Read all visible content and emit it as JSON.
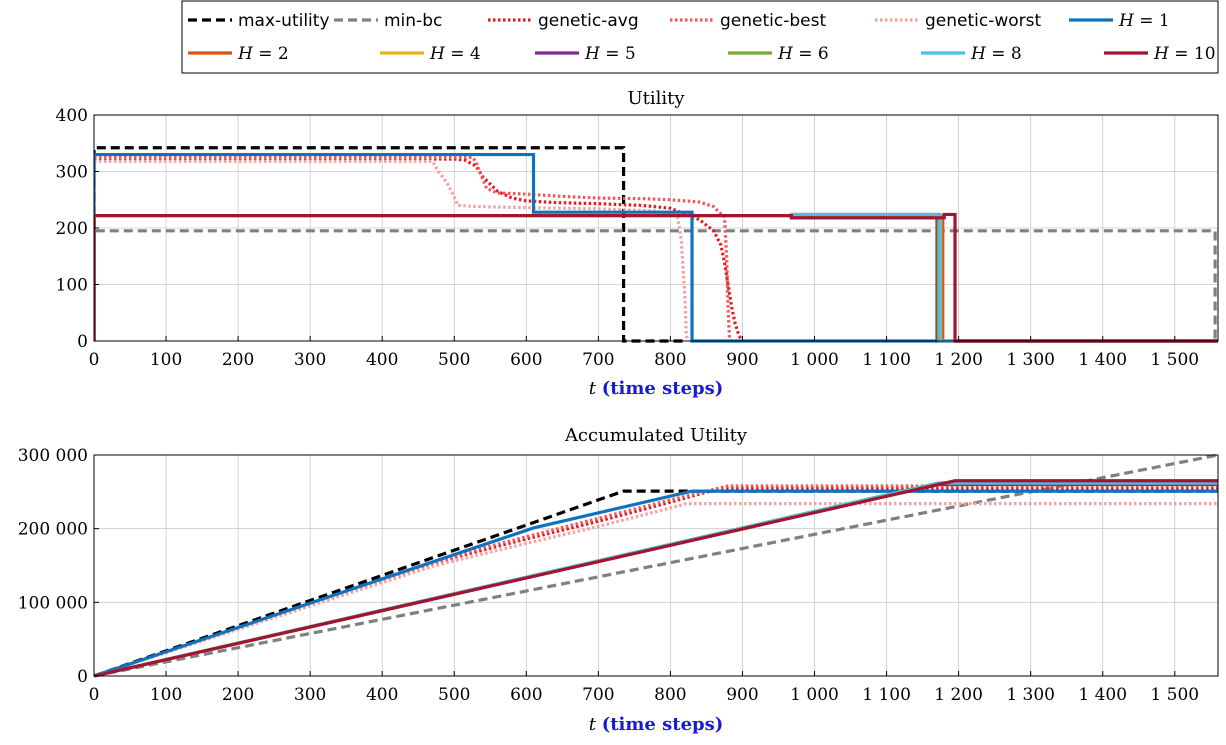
{
  "chart_data": [
    {
      "type": "line",
      "title": "Utility",
      "xlabel_var": "t",
      "xlabel_unit": "(time steps)",
      "xlim": [
        0,
        1560
      ],
      "ylim": [
        0,
        400
      ],
      "xticks": [
        0,
        100,
        200,
        300,
        400,
        500,
        600,
        700,
        800,
        900,
        1000,
        1100,
        1200,
        1300,
        1400,
        1500
      ],
      "xtick_labels": [
        "0",
        "100",
        "200",
        "300",
        "400",
        "500",
        "600",
        "700",
        "800",
        "900",
        "1 000",
        "1 100",
        "1 200",
        "1 300",
        "1 400",
        "1 500"
      ],
      "yticks": [
        0,
        100,
        200,
        300,
        400
      ],
      "ytick_labels": [
        "0",
        "100",
        "200",
        "300",
        "400"
      ],
      "grid": true,
      "series": [
        {
          "key": "max-utility",
          "x": [
            0,
            0,
            735,
            735,
            820,
            820
          ],
          "y": [
            0,
            342,
            342,
            0,
            0,
            0
          ]
        },
        {
          "key": "min-bc",
          "x": [
            0,
            0,
            1556,
            1556
          ],
          "y": [
            0,
            195,
            195,
            0
          ]
        },
        {
          "key": "genetic-avg",
          "x": [
            0,
            500,
            515,
            530,
            540,
            560,
            580,
            600,
            640,
            700,
            760,
            800,
            820,
            840,
            860,
            870,
            875,
            880,
            885,
            890,
            895,
            900
          ],
          "y": [
            322,
            322,
            320,
            310,
            290,
            265,
            253,
            248,
            245,
            243,
            240,
            235,
            225,
            215,
            195,
            170,
            140,
            100,
            60,
            30,
            10,
            0
          ]
        },
        {
          "key": "genetic-best",
          "x": [
            0,
            525,
            530,
            535,
            545,
            560,
            600,
            650,
            700,
            760,
            800,
            840,
            860,
            870,
            875,
            878,
            880,
            882,
            885
          ],
          "y": [
            325,
            325,
            318,
            300,
            270,
            262,
            260,
            256,
            253,
            252,
            250,
            246,
            238,
            225,
            220,
            150,
            60,
            5,
            0
          ]
        },
        {
          "key": "genetic-worst",
          "x": [
            0,
            470,
            478,
            490,
            500,
            505,
            530,
            600,
            700,
            780,
            800,
            810,
            815,
            820,
            822,
            825
          ],
          "y": [
            318,
            318,
            300,
            280,
            255,
            240,
            238,
            236,
            234,
            230,
            225,
            220,
            180,
            80,
            10,
            0
          ]
        },
        {
          "key": "H=1",
          "x": [
            0,
            0,
            610,
            610,
            830,
            830,
            1178,
            1178
          ],
          "y": [
            0,
            330,
            330,
            228,
            228,
            0,
            0,
            0
          ]
        },
        {
          "key": "H=2",
          "x": [
            0,
            0,
            1178,
            1178,
            1560
          ],
          "y": [
            0,
            222,
            222,
            0,
            0
          ]
        },
        {
          "key": "H=4",
          "x": [
            0,
            0,
            1175,
            1175,
            1560
          ],
          "y": [
            0,
            222,
            222,
            0,
            0
          ]
        },
        {
          "key": "H=5",
          "x": [
            0,
            0,
            968,
            968,
            1170,
            1170,
            1560
          ],
          "y": [
            0,
            222,
            222,
            218,
            218,
            0,
            0
          ]
        },
        {
          "key": "H=6",
          "x": [
            0,
            0,
            968,
            968,
            1172,
            1172,
            1560
          ],
          "y": [
            0,
            222,
            222,
            224,
            224,
            0,
            0
          ]
        },
        {
          "key": "H=8",
          "x": [
            0,
            0,
            968,
            968,
            1174,
            1174,
            1560
          ],
          "y": [
            0,
            222,
            222,
            224,
            224,
            0,
            0
          ]
        },
        {
          "key": "H=10",
          "x": [
            0,
            0,
            968,
            968,
            1180,
            1180,
            1195,
            1195,
            1560
          ],
          "y": [
            0,
            222,
            222,
            218,
            218,
            224,
            224,
            0,
            0
          ]
        }
      ]
    },
    {
      "type": "line",
      "title": "Accumulated Utility",
      "xlabel_var": "t",
      "xlabel_unit": "(time steps)",
      "xlim": [
        0,
        1560
      ],
      "ylim": [
        0,
        300000
      ],
      "xticks": [
        0,
        100,
        200,
        300,
        400,
        500,
        600,
        700,
        800,
        900,
        1000,
        1100,
        1200,
        1300,
        1400,
        1500
      ],
      "xtick_labels": [
        "0",
        "100",
        "200",
        "300",
        "400",
        "500",
        "600",
        "700",
        "800",
        "900",
        "1 000",
        "1 100",
        "1 200",
        "1 300",
        "1 400",
        "1 500"
      ],
      "yticks": [
        0,
        100000,
        200000,
        300000
      ],
      "ytick_labels": [
        "0",
        "100 000",
        "200 000",
        "300 000"
      ],
      "grid": true,
      "series": [
        {
          "key": "max-utility",
          "x": [
            0,
            735,
            1560
          ],
          "y": [
            0,
            251000,
            251000
          ]
        },
        {
          "key": "min-bc",
          "x": [
            0,
            1560
          ],
          "y": [
            0,
            300000
          ]
        },
        {
          "key": "genetic-avg",
          "x": [
            0,
            500,
            600,
            700,
            800,
            870,
            1560
          ],
          "y": [
            0,
            161000,
            186000,
            210000,
            236000,
            255000,
            255000
          ]
        },
        {
          "key": "genetic-best",
          "x": [
            0,
            525,
            600,
            700,
            800,
            880,
            1560
          ],
          "y": [
            0,
            170000,
            189000,
            214000,
            239000,
            258000,
            258000
          ]
        },
        {
          "key": "genetic-worst",
          "x": [
            0,
            470,
            600,
            700,
            800,
            822,
            1560
          ],
          "y": [
            0,
            149000,
            180000,
            203000,
            228000,
            234000,
            234000
          ]
        },
        {
          "key": "H=1",
          "x": [
            0,
            610,
            830,
            1560
          ],
          "y": [
            0,
            201000,
            251000,
            251000
          ]
        },
        {
          "key": "H=2",
          "x": [
            0,
            1178,
            1560
          ],
          "y": [
            0,
            262000,
            262000
          ]
        },
        {
          "key": "H=4",
          "x": [
            0,
            1175,
            1560
          ],
          "y": [
            0,
            261000,
            261000
          ]
        },
        {
          "key": "H=5",
          "x": [
            0,
            1170,
            1560
          ],
          "y": [
            0,
            260000,
            260000
          ]
        },
        {
          "key": "H=6",
          "x": [
            0,
            1172,
            1560
          ],
          "y": [
            0,
            262000,
            262000
          ]
        },
        {
          "key": "H=8",
          "x": [
            0,
            1174,
            1560
          ],
          "y": [
            0,
            262000,
            262000
          ]
        },
        {
          "key": "H=10",
          "x": [
            0,
            1195,
            1560
          ],
          "y": [
            0,
            265000,
            265000
          ]
        }
      ]
    }
  ],
  "legend": {
    "placement": "top",
    "entries": [
      {
        "key": "max-utility",
        "label": "max-utility",
        "math": false,
        "color": "#000000",
        "dash": "dashed",
        "width": 3.2
      },
      {
        "key": "min-bc",
        "label": "min-bc",
        "math": false,
        "color": "#808080",
        "dash": "dashed",
        "width": 3.2
      },
      {
        "key": "genetic-avg",
        "label": "genetic-avg",
        "math": false,
        "color": "#e41a1c",
        "dash": "dotted",
        "width": 3.2
      },
      {
        "key": "genetic-best",
        "label": "genetic-best",
        "math": false,
        "color": "#f0585a",
        "dash": "dotted",
        "width": 3.2
      },
      {
        "key": "genetic-worst",
        "label": "genetic-worst",
        "math": false,
        "color": "#f7a0a0",
        "dash": "dotted",
        "width": 3.2
      },
      {
        "key": "H=1",
        "label_var": "H",
        "label_val": "1",
        "math": true,
        "color": "#0f72bd",
        "dash": "solid",
        "width": 3.2
      },
      {
        "key": "H=2",
        "label_var": "H",
        "label_val": "2",
        "math": true,
        "color": "#d95319",
        "dash": "solid",
        "width": 3.2
      },
      {
        "key": "H=4",
        "label_var": "H",
        "label_val": "4",
        "math": true,
        "color": "#edb120",
        "dash": "solid",
        "width": 3.2
      },
      {
        "key": "H=5",
        "label_var": "H",
        "label_val": "5",
        "math": true,
        "color": "#7e2f8e",
        "dash": "solid",
        "width": 3.2
      },
      {
        "key": "H=6",
        "label_var": "H",
        "label_val": "6",
        "math": true,
        "color": "#77ac30",
        "dash": "solid",
        "width": 3.2
      },
      {
        "key": "H=8",
        "label_var": "H",
        "label_val": "8",
        "math": true,
        "color": "#4dbeee",
        "dash": "solid",
        "width": 3.2
      },
      {
        "key": "H=10",
        "label_var": "H",
        "label_val": "10",
        "math": true,
        "color": "#a2142f",
        "dash": "solid",
        "width": 3.2
      }
    ]
  }
}
